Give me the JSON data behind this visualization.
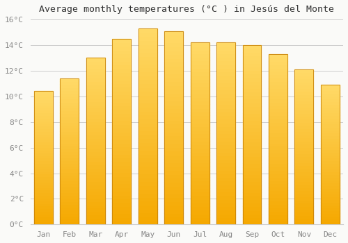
{
  "title": "Average monthly temperatures (°C ) in Jesús del Monte",
  "months": [
    "Jan",
    "Feb",
    "Mar",
    "Apr",
    "May",
    "Jun",
    "Jul",
    "Aug",
    "Sep",
    "Oct",
    "Nov",
    "Dec"
  ],
  "values": [
    10.4,
    11.4,
    13.0,
    14.5,
    15.3,
    15.1,
    14.2,
    14.2,
    14.0,
    13.3,
    12.1,
    10.9
  ],
  "bar_color_bottom": "#F5A800",
  "bar_color_top": "#FFD966",
  "bar_edge_color": "#C8820A",
  "ylim": [
    0,
    16
  ],
  "ytick_step": 2,
  "background_color": "#FAFAF8",
  "grid_color": "#CCCCCC",
  "title_fontsize": 9.5,
  "tick_fontsize": 8,
  "font_family": "monospace",
  "tick_color": "#888888"
}
